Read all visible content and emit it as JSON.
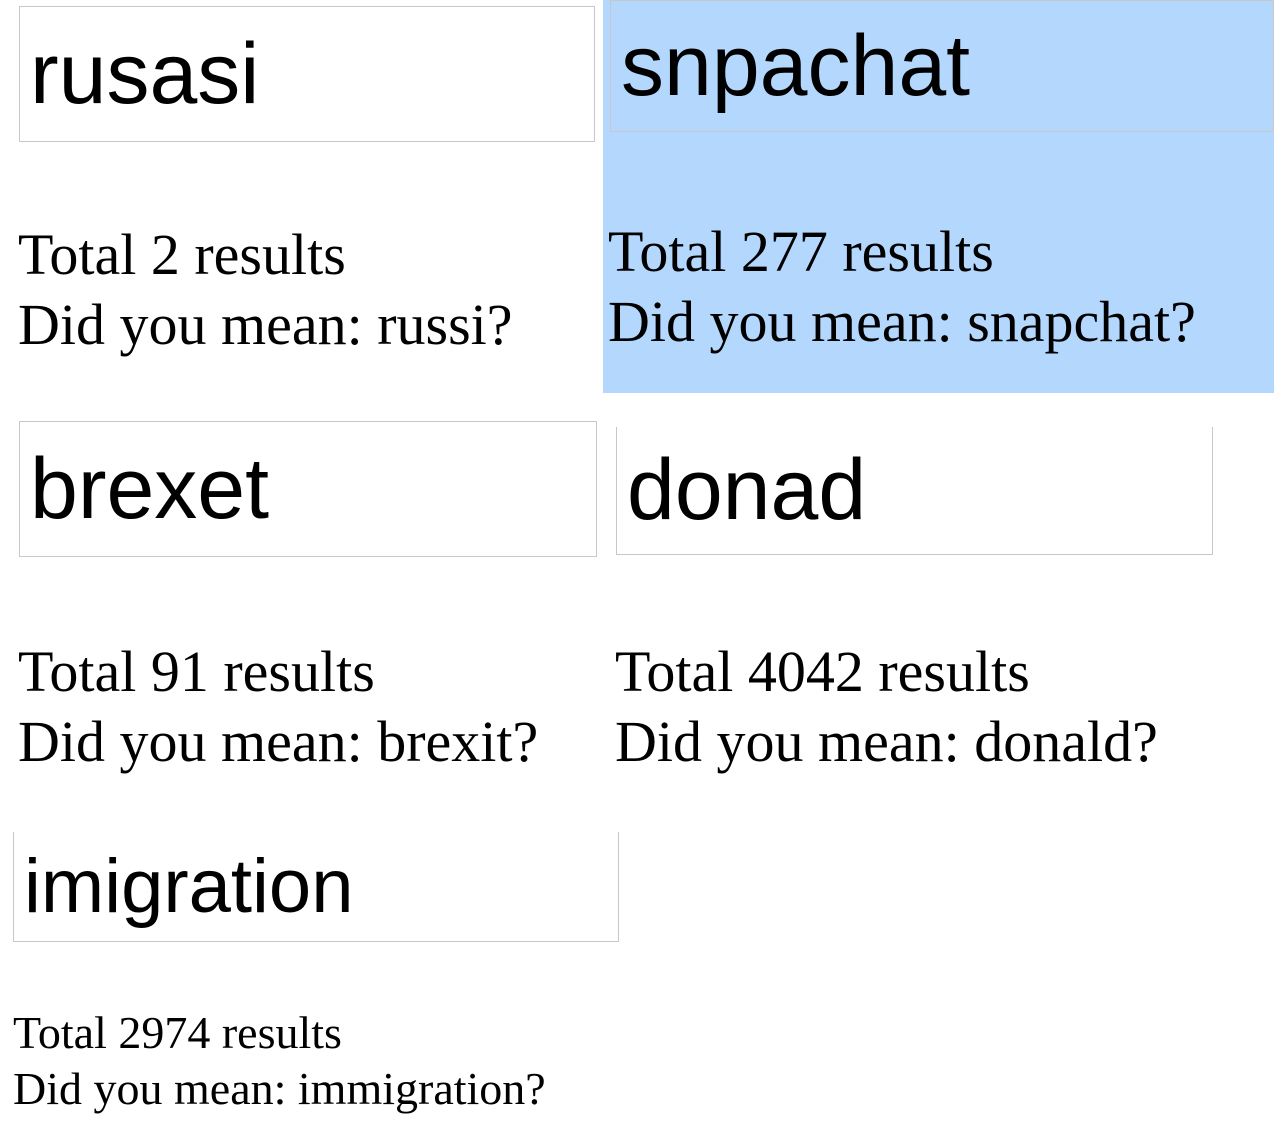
{
  "searches": [
    {
      "query": "rusasi",
      "total": "Total 2 results",
      "suggestion": "Did you mean: russi?"
    },
    {
      "query": "snpachat",
      "total": "Total 277 results",
      "suggestion": "Did you mean: snapchat?",
      "highlighted": true
    },
    {
      "query": "brexet",
      "total": "Total 91 results",
      "suggestion": "Did you mean: brexit?"
    },
    {
      "query": "donad",
      "total": "Total 4042 results",
      "suggestion": "Did you mean: donald?"
    },
    {
      "query": "imigration",
      "total": "Total 2974 results",
      "suggestion": "Did you mean: immigration?"
    }
  ],
  "colors": {
    "highlight": "#b3d7fd",
    "input_border": "#c8c8c8"
  }
}
